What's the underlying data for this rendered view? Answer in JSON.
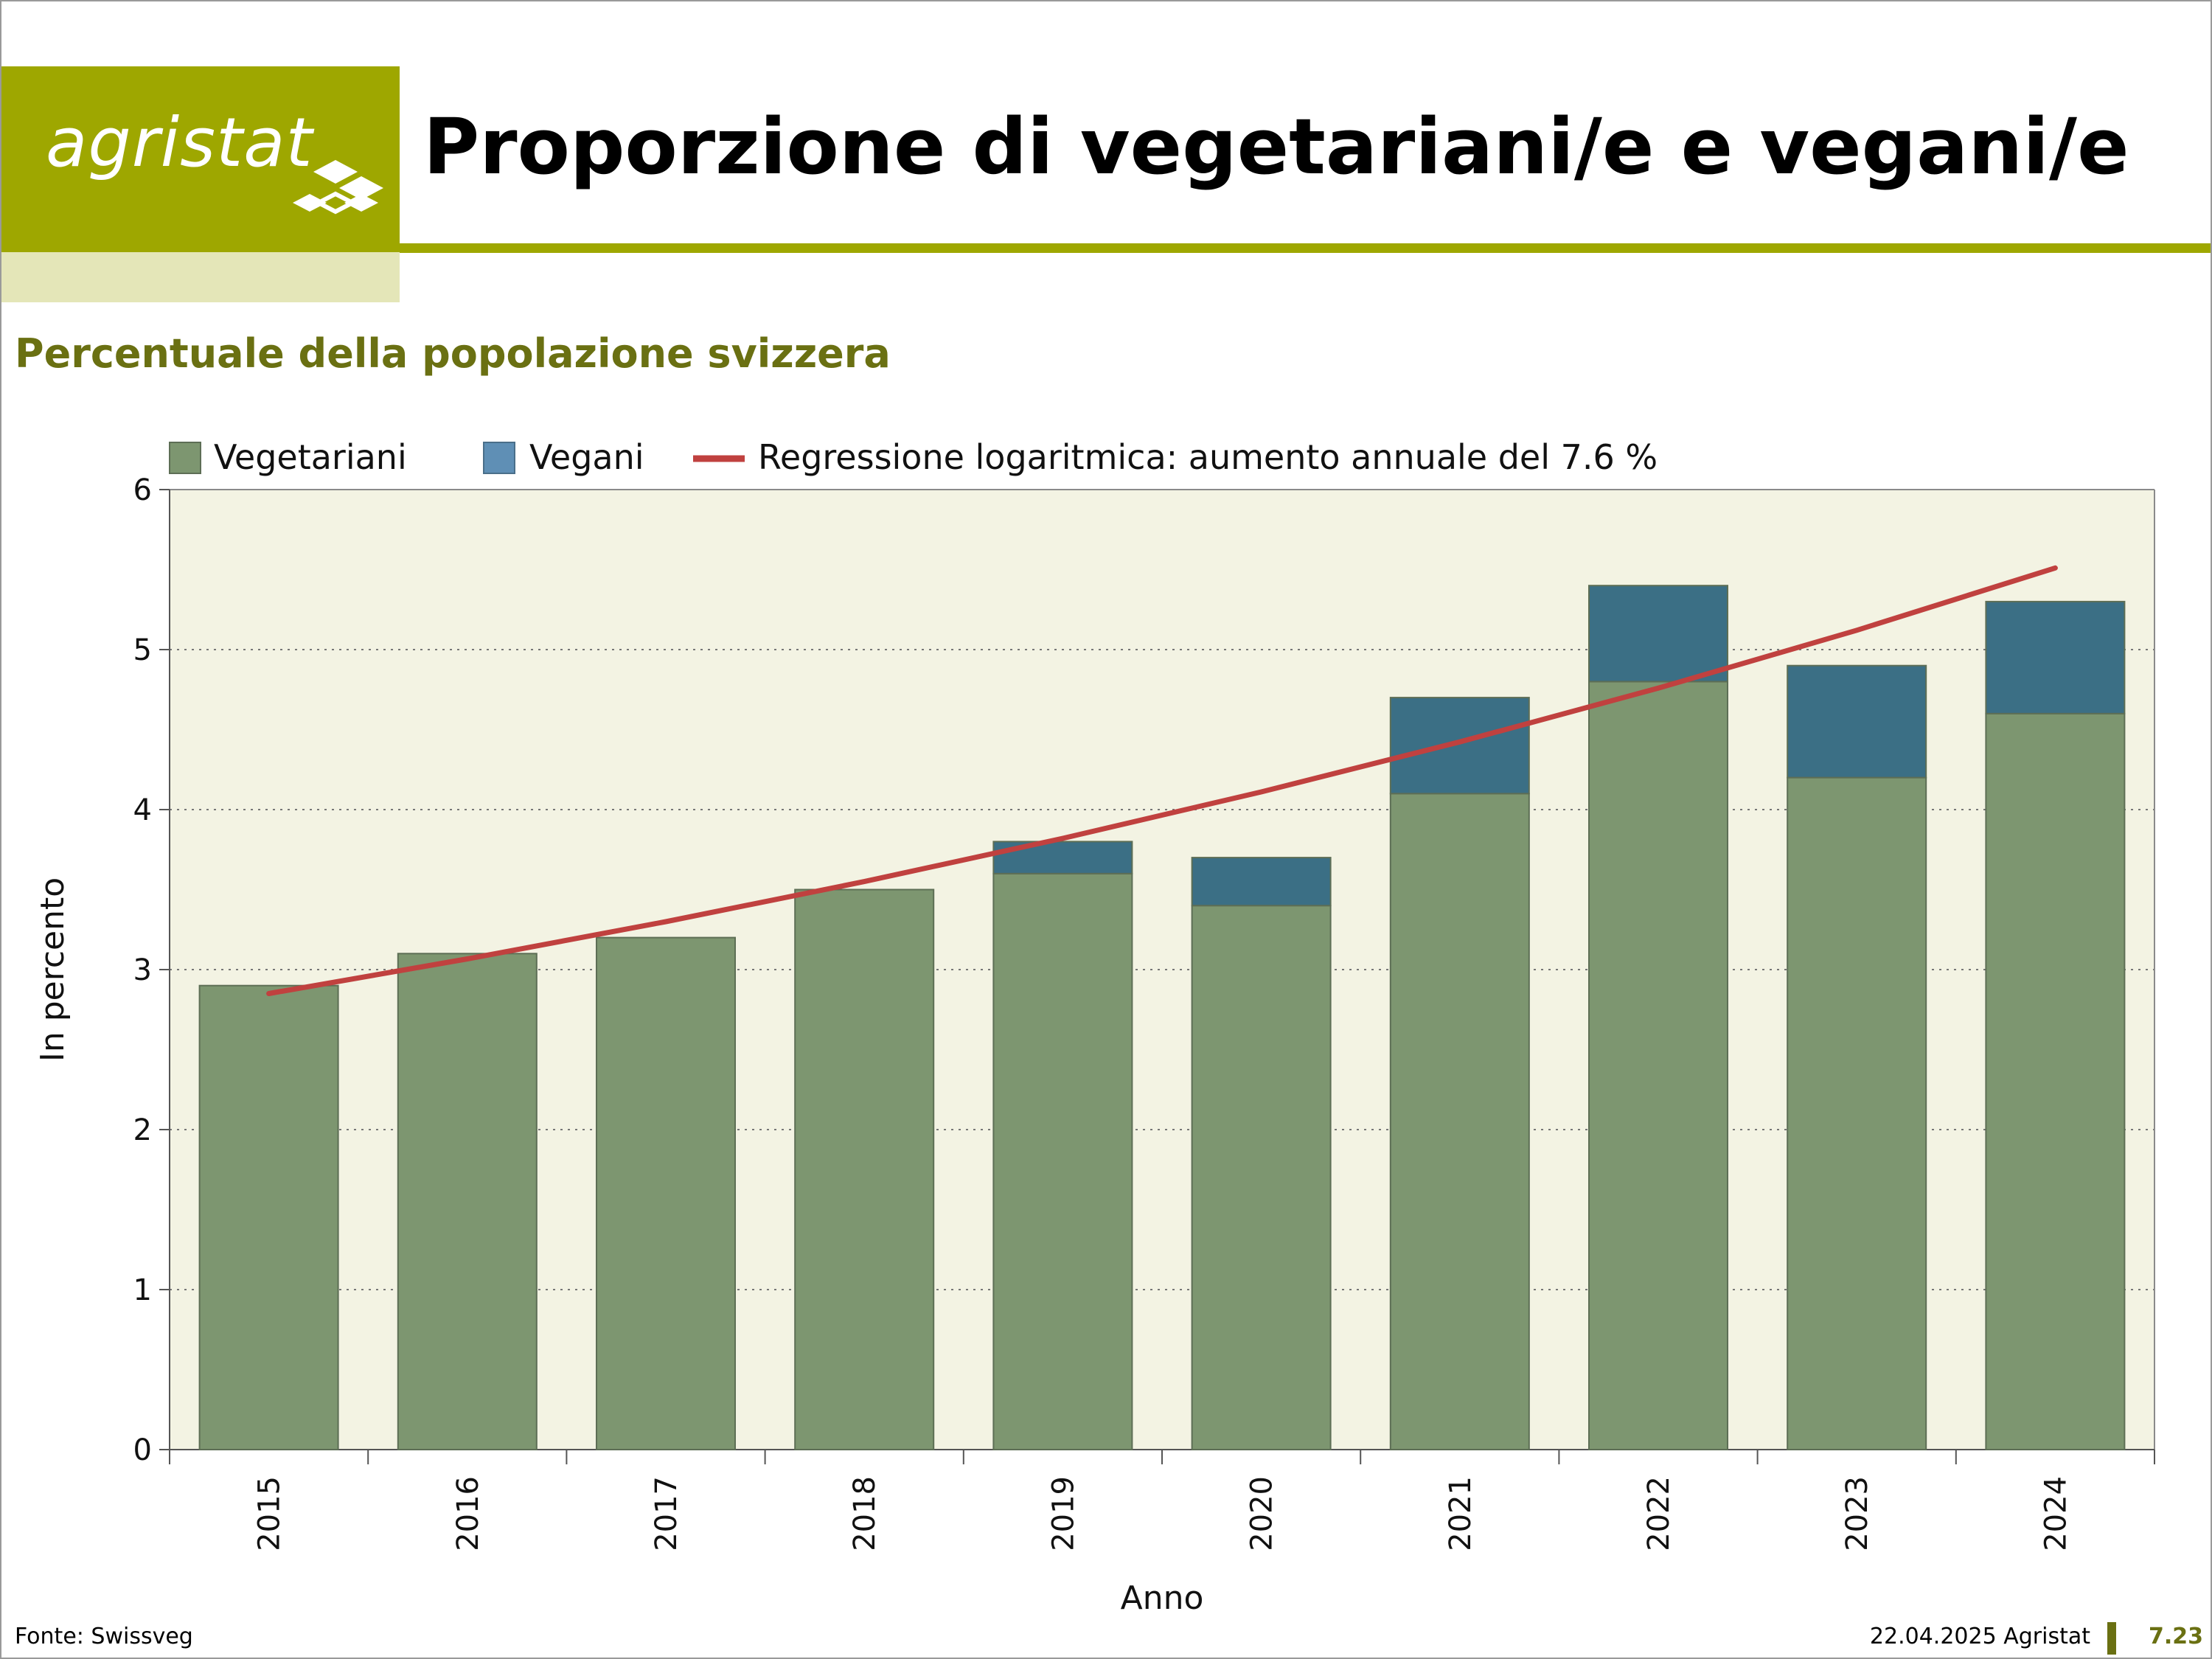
{
  "header": {
    "logo_text": "agristat",
    "title": "Proporzione di vegetariani/e e vegani/e",
    "subtitle": "Percentuale della popolazione svizzera"
  },
  "footer": {
    "source": "Fonte: Swissveg",
    "date_org": "22.04.2025 Agristat",
    "page_number": "7.23"
  },
  "colors": {
    "brand": "#9ea700",
    "brand_dark": "#6a7012",
    "plot_bg": "#f3f3e3",
    "vegetariani": "#7d9670",
    "vegani": "#3b6f85",
    "vegani_legend": "#5f8fb5",
    "regression": "#c0413f"
  },
  "chart_data": {
    "type": "bar",
    "stacked": true,
    "categories": [
      "2015",
      "2016",
      "2017",
      "2018",
      "2019",
      "2020",
      "2021",
      "2022",
      "2023",
      "2024"
    ],
    "series": [
      {
        "name": "Vegetariani",
        "values": [
          2.9,
          3.1,
          3.2,
          3.5,
          3.6,
          3.4,
          4.1,
          4.8,
          4.2,
          4.6
        ]
      },
      {
        "name": "Vegani",
        "values": [
          0,
          0,
          0,
          0,
          0.2,
          0.3,
          0.6,
          0.6,
          0.7,
          0.7
        ]
      }
    ],
    "regression": {
      "name": "Regressione logaritmica: aumento annuale del 7.6 %",
      "type": "line",
      "start_value": 2.85,
      "annual_growth": 0.076
    },
    "xlabel": "Anno",
    "ylabel": "In percento",
    "ylim": [
      0,
      6
    ],
    "yticks": [
      0,
      1,
      2,
      3,
      4,
      5,
      6
    ],
    "grid": "horizontal dotted",
    "legend_position": "top"
  }
}
